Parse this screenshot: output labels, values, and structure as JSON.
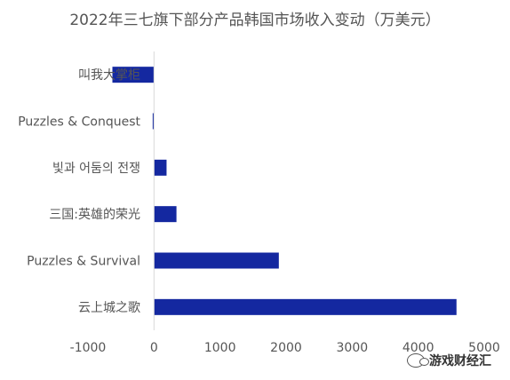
{
  "chart_data": {
    "type": "bar",
    "orientation": "horizontal",
    "title": "2022年三七旗下部分产品韩国市场收入变动（万美元）",
    "categories": [
      "叫我大掌柜",
      "Puzzles & Conquest",
      "빛과 어둠의 전쟁",
      "三国:英雄的荣光",
      "Puzzles & Survival",
      "云上城之歌"
    ],
    "values": [
      -630,
      -20,
      190,
      340,
      1890,
      4580
    ],
    "xlim": [
      -1000,
      5000
    ],
    "xticks": [
      "-1000",
      "0",
      "1000",
      "2000",
      "3000",
      "4000",
      "5000"
    ],
    "bar_color": "#1428A0",
    "grid": false,
    "legend": "none"
  },
  "watermark": {
    "text": "游戏财经汇",
    "icon": "wechat-icon"
  }
}
